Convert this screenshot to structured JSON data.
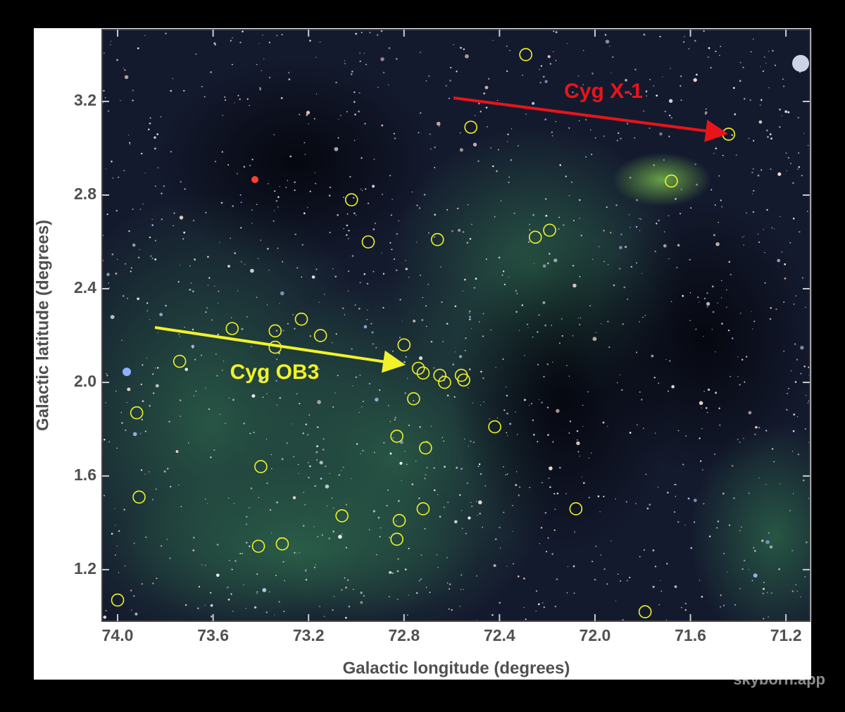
{
  "chart_data": {
    "type": "scatter",
    "xlabel": "Galactic longitude (degrees)",
    "ylabel": "Galactic latitude (degrees)",
    "xlim": [
      74.065,
      71.1
    ],
    "ylim": [
      0.98,
      3.507
    ],
    "xticks": [
      {
        "value": 74,
        "label": "74.0"
      },
      73.6,
      73.2,
      72.8,
      72.4,
      {
        "value": 72,
        "label": "72.0"
      },
      71.6,
      71.2
    ],
    "yticks": [
      1.2,
      1.6,
      {
        "value": 2,
        "label": "2.0"
      },
      2.4,
      2.8,
      3.2
    ],
    "color": "#f2f22a",
    "x": [
      72.29,
      72.52,
      71.44,
      71.68,
      73.02,
      72.95,
      72.66,
      72.25,
      72.19,
      73.52,
      73.34,
      73.23,
      73.15,
      73.34,
      73.74,
      72.8,
      72.74,
      72.72,
      72.65,
      72.63,
      72.56,
      72.55,
      72.76,
      73.92,
      72.42,
      72.83,
      72.71,
      73.4,
      73.91,
      72.72,
      72.08,
      73.06,
      72.82,
      72.83,
      73.41,
      73.31,
      74.0,
      71.79
    ],
    "y": [
      3.4,
      3.09,
      3.06,
      2.86,
      2.78,
      2.6,
      2.61,
      2.62,
      2.65,
      2.23,
      2.22,
      2.27,
      2.2,
      2.15,
      2.09,
      2.16,
      2.06,
      2.04,
      2.03,
      2.0,
      2.03,
      2.01,
      1.93,
      1.87,
      1.81,
      1.77,
      1.72,
      1.64,
      1.51,
      1.46,
      1.46,
      1.43,
      1.41,
      1.33,
      1.3,
      1.31,
      1.07,
      1.02
    ],
    "annotations": [
      {
        "text": "Cyg X-1",
        "color": "#e8141a"
      },
      {
        "text": "Cyg OB3",
        "color": "#f2f22a"
      }
    ],
    "watermark": "skyborn.app"
  }
}
